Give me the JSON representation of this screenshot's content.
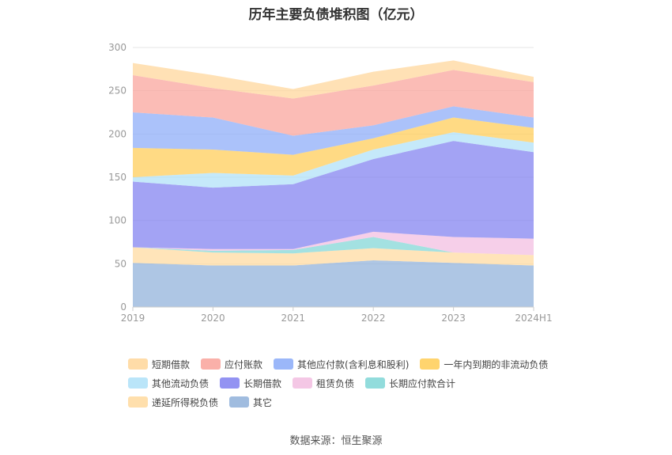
{
  "chart_data": {
    "type": "area",
    "stacked": true,
    "title": "历年主要负债堆积图（亿元）",
    "x": [
      "2019",
      "2020",
      "2021",
      "2022",
      "2023",
      "2024H1"
    ],
    "ylim": [
      0,
      300
    ],
    "yticks": [
      0,
      50,
      100,
      150,
      200,
      250,
      300
    ],
    "grid": true,
    "legend_position": "bottom",
    "series": [
      {
        "name": "其它",
        "color": "#8fb0d9",
        "values": [
          51,
          48,
          48,
          54,
          51,
          48
        ]
      },
      {
        "name": "递延所得税负债",
        "color": "#ffd99e",
        "values": [
          18,
          15,
          14,
          14,
          12,
          12
        ]
      },
      {
        "name": "长期应付款合计",
        "color": "#7fd6d6",
        "values": [
          0,
          2,
          4,
          13,
          0,
          0
        ]
      },
      {
        "name": "租赁负债",
        "color": "#f2bde0",
        "values": [
          0,
          2,
          1,
          6,
          18,
          19
        ]
      },
      {
        "name": "长期借款",
        "color": "#8080f0",
        "values": [
          76,
          71,
          75,
          84,
          111,
          100
        ]
      },
      {
        "name": "其他流动负债",
        "color": "#aee0f8",
        "values": [
          5,
          17,
          10,
          11,
          10,
          11
        ]
      },
      {
        "name": "一年内到期的非流动负债",
        "color": "#ffcc55",
        "values": [
          34,
          27,
          24,
          13,
          17,
          17
        ]
      },
      {
        "name": "其他应付款(含利息和股利)",
        "color": "#8aaaf8",
        "values": [
          41,
          37,
          22,
          15,
          13,
          12
        ]
      },
      {
        "name": "应付账款",
        "color": "#f9a29a",
        "values": [
          43,
          34,
          43,
          46,
          42,
          41
        ]
      },
      {
        "name": "短期借款",
        "color": "#ffd699",
        "values": [
          14,
          15,
          11,
          16,
          11,
          6
        ]
      }
    ],
    "legend_order": [
      "短期借款",
      "应付账款",
      "其他应付款(含利息和股利)",
      "一年内到期的非流动负债",
      "其他流动负债",
      "长期借款",
      "租赁负债",
      "长期应付款合计",
      "递延所得税负债",
      "其它"
    ]
  },
  "source_note": "数据来源：恒生聚源"
}
